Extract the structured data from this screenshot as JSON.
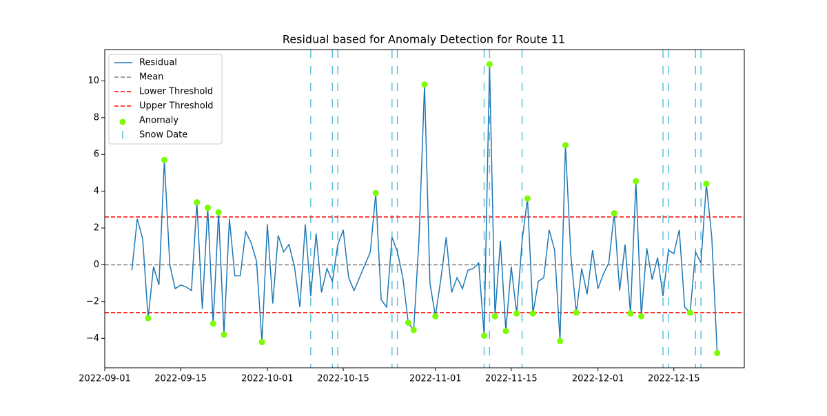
{
  "chart_data": {
    "type": "line",
    "title": "Residual based for Anomaly Detection for Route 11",
    "x": [
      "2022-09-06",
      "2022-09-07",
      "2022-09-08",
      "2022-09-09",
      "2022-09-10",
      "2022-09-11",
      "2022-09-12",
      "2022-09-13",
      "2022-09-14",
      "2022-09-15",
      "2022-09-16",
      "2022-09-17",
      "2022-09-18",
      "2022-09-19",
      "2022-09-20",
      "2022-09-21",
      "2022-09-22",
      "2022-09-23",
      "2022-09-24",
      "2022-09-25",
      "2022-09-26",
      "2022-09-27",
      "2022-09-28",
      "2022-09-29",
      "2022-09-30",
      "2022-10-01",
      "2022-10-02",
      "2022-10-03",
      "2022-10-04",
      "2022-10-05",
      "2022-10-06",
      "2022-10-07",
      "2022-10-08",
      "2022-10-09",
      "2022-10-10",
      "2022-10-11",
      "2022-10-12",
      "2022-10-13",
      "2022-10-14",
      "2022-10-15",
      "2022-10-16",
      "2022-10-17",
      "2022-10-18",
      "2022-10-19",
      "2022-10-20",
      "2022-10-21",
      "2022-10-22",
      "2022-10-23",
      "2022-10-24",
      "2022-10-25",
      "2022-10-26",
      "2022-10-27",
      "2022-10-28",
      "2022-10-29",
      "2022-10-30",
      "2022-10-31",
      "2022-11-01",
      "2022-11-02",
      "2022-11-03",
      "2022-11-04",
      "2022-11-05",
      "2022-11-06",
      "2022-11-07",
      "2022-11-08",
      "2022-11-09",
      "2022-11-10",
      "2022-11-11",
      "2022-11-12",
      "2022-11-13",
      "2022-11-14",
      "2022-11-15",
      "2022-11-16",
      "2022-11-17",
      "2022-11-18",
      "2022-11-19",
      "2022-11-20",
      "2022-11-21",
      "2022-11-22",
      "2022-11-23",
      "2022-11-24",
      "2022-11-25",
      "2022-11-26",
      "2022-11-27",
      "2022-11-28",
      "2022-11-29",
      "2022-11-30",
      "2022-12-01",
      "2022-12-02",
      "2022-12-03",
      "2022-12-04",
      "2022-12-05",
      "2022-12-06",
      "2022-12-07",
      "2022-12-08",
      "2022-12-09",
      "2022-12-10",
      "2022-12-11",
      "2022-12-12",
      "2022-12-13",
      "2022-12-14",
      "2022-12-15",
      "2022-12-16",
      "2022-12-17",
      "2022-12-18",
      "2022-12-19",
      "2022-12-20",
      "2022-12-21",
      "2022-12-22",
      "2022-12-23"
    ],
    "series": [
      {
        "name": "Residual",
        "color": "#1f77b4",
        "values": [
          -0.3,
          2.5,
          1.4,
          -2.9,
          -0.1,
          -1.1,
          5.7,
          0.0,
          -1.3,
          -1.1,
          -1.2,
          -1.4,
          3.4,
          -2.4,
          3.1,
          -3.2,
          2.85,
          -3.8,
          2.5,
          -0.6,
          -0.6,
          1.8,
          1.2,
          0.2,
          -4.2,
          2.2,
          -2.1,
          1.6,
          0.7,
          1.1,
          -0.1,
          -2.3,
          2.2,
          -1.7,
          1.7,
          -1.5,
          -0.2,
          -0.9,
          1.1,
          1.9,
          -0.7,
          -1.4,
          -0.7,
          0.0,
          0.7,
          3.9,
          -1.9,
          -2.3,
          1.5,
          0.7,
          -0.7,
          -3.15,
          -3.55,
          1.5,
          9.8,
          -1.0,
          -2.8,
          -0.8,
          1.5,
          -1.5,
          -0.7,
          -1.3,
          -0.3,
          -0.2,
          0.1,
          -3.85,
          10.9,
          -2.8,
          1.3,
          -3.6,
          -0.1,
          -2.65,
          1.3,
          3.6,
          -2.65,
          -0.9,
          -0.7,
          1.9,
          0.8,
          -4.15,
          6.5,
          0.5,
          -2.6,
          -0.2,
          -1.6,
          0.8,
          -1.3,
          -0.5,
          0.1,
          2.8,
          -1.4,
          1.1,
          -2.65,
          4.55,
          -2.8,
          0.9,
          -0.8,
          0.4,
          -1.7,
          0.8,
          0.6,
          1.9,
          -2.3,
          -2.6,
          0.7,
          0.1,
          4.4,
          1.5,
          -4.8
        ]
      }
    ],
    "hlines": [
      {
        "name": "Mean",
        "value": 0,
        "color": "#808080"
      },
      {
        "name": "Lower Threshold",
        "value": -2.6,
        "color": "#ff0000"
      },
      {
        "name": "Upper Threshold",
        "value": 2.6,
        "color": "#ff0000"
      }
    ],
    "anomalies": {
      "name": "Anomaly",
      "color": "#7cfc00",
      "x": [
        "2022-09-09",
        "2022-09-12",
        "2022-09-18",
        "2022-09-20",
        "2022-09-21",
        "2022-09-22",
        "2022-09-23",
        "2022-09-30",
        "2022-10-21",
        "2022-10-27",
        "2022-10-28",
        "2022-10-30",
        "2022-11-01",
        "2022-11-10",
        "2022-11-11",
        "2022-11-12",
        "2022-11-14",
        "2022-11-16",
        "2022-11-18",
        "2022-11-19",
        "2022-11-24",
        "2022-11-25",
        "2022-11-27",
        "2022-12-04",
        "2022-12-07",
        "2022-12-08",
        "2022-12-09",
        "2022-12-18",
        "2022-12-21",
        "2022-12-23"
      ],
      "values": [
        -2.9,
        5.7,
        3.4,
        3.1,
        -3.2,
        2.85,
        -3.8,
        -4.2,
        3.9,
        -3.15,
        -3.55,
        9.8,
        -2.8,
        -3.85,
        10.9,
        -2.8,
        -3.6,
        -2.65,
        3.6,
        -2.65,
        -4.15,
        6.5,
        -2.6,
        2.8,
        -2.65,
        4.55,
        -2.8,
        -2.6,
        4.4,
        -4.8
      ]
    },
    "snow_dates": {
      "name": "Snow Date",
      "color": "#5bc0de",
      "x": [
        "2022-10-09",
        "2022-10-13",
        "2022-10-14",
        "2022-10-24",
        "2022-10-25",
        "2022-11-10",
        "2022-11-11",
        "2022-11-17",
        "2022-12-13",
        "2022-12-14",
        "2022-12-19",
        "2022-12-20"
      ]
    },
    "xlim": [
      "2022-09-01",
      "2022-12-28"
    ],
    "xticks": [
      "2022-09-01",
      "2022-09-15",
      "2022-10-01",
      "2022-10-15",
      "2022-11-01",
      "2022-11-15",
      "2022-12-01",
      "2022-12-15"
    ],
    "ylim": [
      -5.6,
      11.7
    ],
    "yticks": [
      {
        "value": -4,
        "label": "−4"
      },
      {
        "value": -2,
        "label": "−2"
      },
      0,
      2,
      4,
      6,
      8,
      10
    ],
    "legend": "upper left"
  }
}
